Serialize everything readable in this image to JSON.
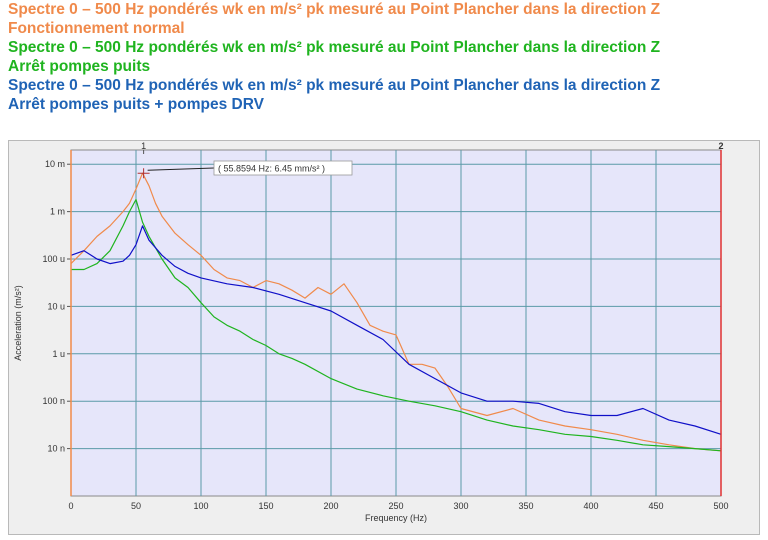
{
  "titles": [
    {
      "line1": "Spectre 0 – 500 Hz pondérés wk en m/s² pk mesuré au Point Plancher dans la direction Z",
      "line2": "Fonctionnement normal"
    },
    {
      "line1": "Spectre 0 – 500 Hz pondérés wk en m/s² pk mesuré au Point Plancher dans la direction Z",
      "line2": "Arrêt pompes puits"
    },
    {
      "line1": "Spectre 0 – 500 Hz pondérés wk en m/s² pk mesuré au Point Plancher dans la direction Z",
      "line2": "Arrêt pompes puits + pompes DRV"
    }
  ],
  "chart_data": {
    "type": "line",
    "title": "",
    "xlabel": "Frequency (Hz)",
    "ylabel": "Acceleration (m/s²)",
    "xlim": [
      0,
      500
    ],
    "ylim_log10": [
      -9,
      -1.7
    ],
    "y_scale": "log",
    "grid": true,
    "x_ticks": [
      "0",
      "50",
      "100",
      "150",
      "200",
      "250",
      "300",
      "350",
      "400",
      "450",
      "500"
    ],
    "y_ticks": [
      {
        "label": "10 m",
        "value": 0.01
      },
      {
        "label": "1 m",
        "value": 0.001
      },
      {
        "label": "100 u",
        "value": 0.0001
      },
      {
        "label": "10 u",
        "value": 1e-05
      },
      {
        "label": "1 u",
        "value": 1e-06
      },
      {
        "label": "100 n",
        "value": 1e-07
      },
      {
        "label": "10 n",
        "value": 1e-08
      }
    ],
    "cursor_labels": {
      "left": "1",
      "right": "2"
    },
    "annotation": {
      "text": "( 55.8594 Hz:  6.45 mm/s² )",
      "x": 55.8594,
      "y": 0.00645
    },
    "colors": {
      "plot_bg": "#e6e6fa",
      "grid": "#5a9aa8",
      "orange": "#f08a4b",
      "green": "#1fb41f",
      "blue": "#1010c8",
      "cursor_left": "#f08a4b",
      "cursor_right": "#e03030"
    },
    "series": [
      {
        "color": "#f08a4b",
        "x": [
          0,
          10,
          20,
          30,
          40,
          45,
          50,
          55,
          60,
          65,
          70,
          80,
          90,
          100,
          110,
          120,
          130,
          140,
          150,
          160,
          170,
          180,
          190,
          200,
          210,
          220,
          230,
          240,
          250,
          260,
          270,
          280,
          290,
          300,
          320,
          340,
          360,
          380,
          400,
          420,
          440,
          460,
          480,
          500
        ],
        "y": [
          8e-05,
          0.00015,
          0.0003,
          0.0005,
          0.001,
          0.0015,
          0.003,
          0.00645,
          0.0035,
          0.0015,
          0.0008,
          0.00035,
          0.0002,
          0.00012,
          6e-05,
          4e-05,
          3.5e-05,
          2.5e-05,
          3.5e-05,
          3e-05,
          2.2e-05,
          1.5e-05,
          2.5e-05,
          1.8e-05,
          3e-05,
          1.2e-05,
          4e-06,
          3e-06,
          2.5e-06,
          6e-07,
          6e-07,
          5e-07,
          2e-07,
          7e-08,
          5e-08,
          7e-08,
          4e-08,
          3e-08,
          2.5e-08,
          2e-08,
          1.5e-08,
          1.2e-08,
          1e-08,
          9e-09
        ]
      },
      {
        "color": "#1fb41f",
        "x": [
          0,
          10,
          20,
          30,
          40,
          45,
          50,
          55,
          60,
          70,
          80,
          90,
          100,
          110,
          120,
          130,
          140,
          150,
          160,
          170,
          180,
          200,
          220,
          240,
          260,
          280,
          300,
          320,
          340,
          360,
          380,
          400,
          420,
          440,
          460,
          480,
          500
        ],
        "y": [
          6e-05,
          6e-05,
          8e-05,
          0.00015,
          0.0005,
          0.001,
          0.0018,
          0.0006,
          0.0003,
          0.0001,
          4e-05,
          2.5e-05,
          1.2e-05,
          6e-06,
          4e-06,
          3e-06,
          2e-06,
          1.5e-06,
          1e-06,
          8e-07,
          6e-07,
          3e-07,
          1.8e-07,
          1.3e-07,
          1e-07,
          8e-08,
          6e-08,
          4e-08,
          3e-08,
          2.5e-08,
          2e-08,
          1.8e-08,
          1.5e-08,
          1.2e-08,
          1.1e-08,
          1e-08,
          9e-09
        ]
      },
      {
        "color": "#1010c8",
        "x": [
          0,
          10,
          20,
          30,
          40,
          45,
          50,
          55,
          60,
          70,
          80,
          90,
          100,
          120,
          140,
          160,
          180,
          200,
          220,
          240,
          260,
          280,
          300,
          320,
          340,
          360,
          380,
          400,
          420,
          440,
          460,
          480,
          500
        ],
        "y": [
          0.00012,
          0.00015,
          0.0001,
          8e-05,
          9e-05,
          0.00012,
          0.0002,
          0.0005,
          0.00025,
          0.00012,
          7e-05,
          5e-05,
          4e-05,
          3e-05,
          2.5e-05,
          1.8e-05,
          1.2e-05,
          8e-06,
          4e-06,
          2e-06,
          6e-07,
          3e-07,
          1.5e-07,
          1e-07,
          1e-07,
          9e-08,
          6e-08,
          5e-08,
          5e-08,
          7e-08,
          4e-08,
          3e-08,
          2e-08
        ]
      }
    ]
  }
}
